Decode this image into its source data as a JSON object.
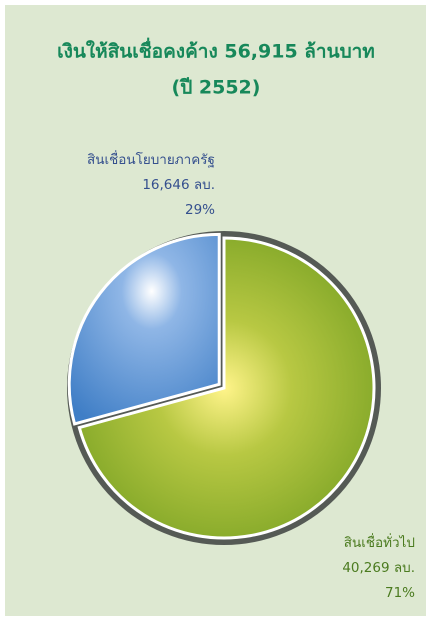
{
  "chart_data": {
    "type": "pie",
    "title": "เงินให้สินเชื่อคงค้าง 56,915 ล้านบาท",
    "subtitle": "(ปี 2552)",
    "categories": [
      "สินเชื่อนโยบายภาครัฐ",
      "สินเชื่อทั่วไป"
    ],
    "values": [
      16646,
      40269
    ],
    "value_labels": [
      "16,646 ลบ.",
      "40,269 ลบ."
    ],
    "percents": [
      29,
      71
    ],
    "percent_labels": [
      "29%",
      "71%"
    ],
    "colors": [
      "#3f7ec6",
      "#8aac2c"
    ]
  }
}
